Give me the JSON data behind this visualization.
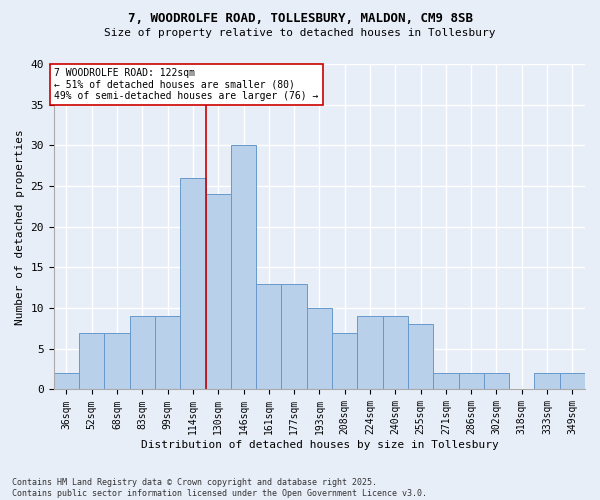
{
  "title_line1": "7, WOODROLFE ROAD, TOLLESBURY, MALDON, CM9 8SB",
  "title_line2": "Size of property relative to detached houses in Tollesbury",
  "xlabel": "Distribution of detached houses by size in Tollesbury",
  "ylabel": "Number of detached properties",
  "categories": [
    "36sqm",
    "52sqm",
    "68sqm",
    "83sqm",
    "99sqm",
    "114sqm",
    "130sqm",
    "146sqm",
    "161sqm",
    "177sqm",
    "193sqm",
    "208sqm",
    "224sqm",
    "240sqm",
    "255sqm",
    "271sqm",
    "286sqm",
    "302sqm",
    "318sqm",
    "333sqm",
    "349sqm"
  ],
  "values": [
    2,
    7,
    7,
    9,
    9,
    26,
    24,
    30,
    13,
    13,
    10,
    7,
    9,
    9,
    8,
    2,
    2,
    2,
    0,
    2,
    2
  ],
  "bar_color": "#b8d0ea",
  "bar_edge_color": "#6699cc",
  "vline_x": 6,
  "vline_color": "#cc0000",
  "annotation_text": "7 WOODROLFE ROAD: 122sqm\n← 51% of detached houses are smaller (80)\n49% of semi-detached houses are larger (76) →",
  "annotation_box_color": "#ffffff",
  "annotation_box_edge": "#cc0000",
  "ylim": [
    0,
    40
  ],
  "yticks": [
    0,
    5,
    10,
    15,
    20,
    25,
    30,
    35,
    40
  ],
  "footnote": "Contains HM Land Registry data © Crown copyright and database right 2025.\nContains public sector information licensed under the Open Government Licence v3.0.",
  "bg_color": "#e8eef8",
  "plot_bg_color": "#e8eef8",
  "grid_color": "#ffffff"
}
